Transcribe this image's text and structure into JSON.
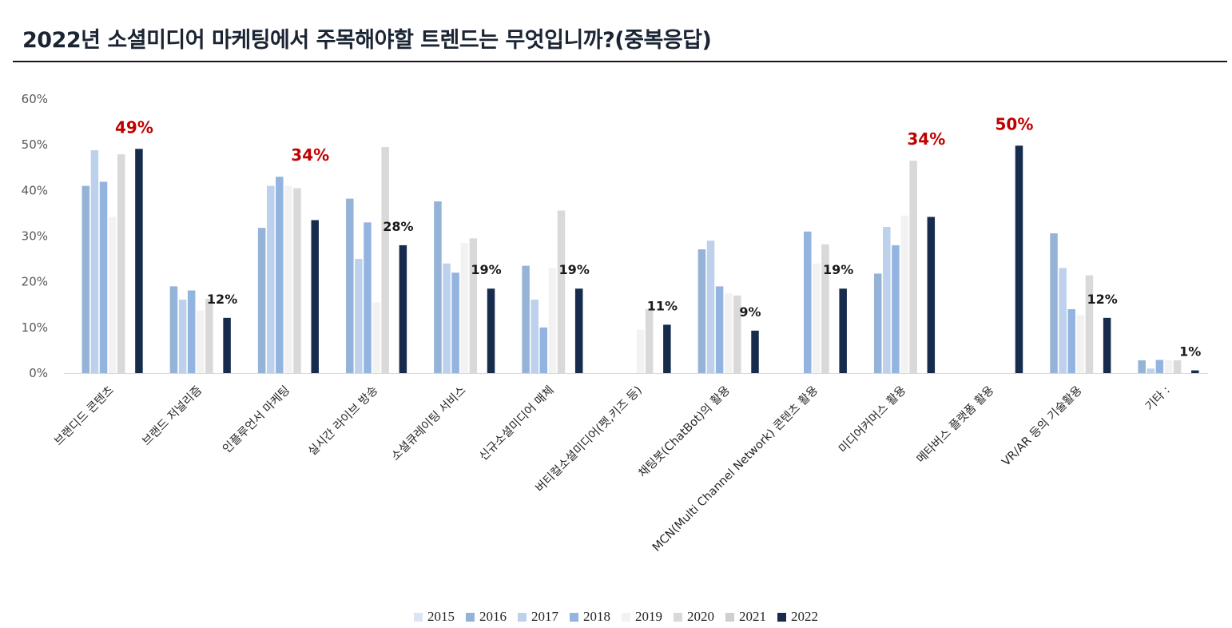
{
  "title": "2022년 소셜미디어 마케팅에서 주목해야할 트렌드는 무엇입니까?(중복응답)",
  "chart_data": {
    "type": "bar",
    "ylim": [
      0,
      60
    ],
    "yticks": [
      "0%",
      "10%",
      "20%",
      "30%",
      "40%",
      "50%",
      "60%"
    ],
    "categories": [
      "브랜디드 콘텐츠",
      "브랜드 저널리즘",
      "인플루언서 마케팅",
      "실시간 라이브 방송",
      "소셜큐레이팅 서비스",
      "신규소셜미디어 매체",
      "버티컬소셜미디어(펫,키즈 등)",
      "채팅봇(ChatBot)의 활용",
      "MCN(Multi Channel Network) 콘텐츠 활용",
      "미디어커머스 활용",
      "메타버스 플랫폼 활용",
      "VR/AR 등의 기술활용",
      "기타 :"
    ],
    "series": [
      {
        "name": "2015",
        "color": "#dce6f2",
        "values": [
          null,
          null,
          null,
          null,
          null,
          null,
          null,
          null,
          null,
          null,
          null,
          null,
          null
        ]
      },
      {
        "name": "2016",
        "color": "#95b3d7",
        "values": [
          41,
          19,
          31.8,
          38.2,
          37.6,
          23.5,
          null,
          27.1,
          null,
          21.8,
          null,
          30.6,
          2.8
        ]
      },
      {
        "name": "2017",
        "color": "#bdd1ec",
        "values": [
          48.8,
          16.1,
          41,
          25,
          24,
          16.1,
          null,
          29,
          null,
          32,
          null,
          23,
          1
        ]
      },
      {
        "name": "2018",
        "color": "#94b4e0",
        "values": [
          41.9,
          18.1,
          43,
          33,
          22,
          10,
          null,
          19,
          31,
          28,
          null,
          14,
          2.9
        ]
      },
      {
        "name": "2019",
        "color": "#f2f2f2",
        "values": [
          34.2,
          13.7,
          41,
          15.5,
          28.5,
          23,
          9.5,
          17.5,
          24,
          34.5,
          null,
          12.7,
          2.9
        ]
      },
      {
        "name": "2020",
        "color": "#d9d9d9",
        "values": [
          47.9,
          16.3,
          40.5,
          49.5,
          29.5,
          35.6,
          14,
          17,
          28.2,
          46.5,
          null,
          21.4,
          2.8
        ]
      },
      {
        "name": "2021",
        "color": "#cfcfcf",
        "values": [
          null,
          null,
          null,
          null,
          null,
          null,
          null,
          null,
          null,
          null,
          null,
          null,
          null
        ]
      },
      {
        "name": "2022",
        "color": "#172b4d",
        "values": [
          49.1,
          12.1,
          33.5,
          28,
          18.5,
          18.5,
          10.6,
          9.3,
          18.5,
          34.2,
          49.8,
          12.1,
          0.6
        ]
      }
    ],
    "data_labels": [
      {
        "category_index": 0,
        "text": "49%",
        "style": "red"
      },
      {
        "category_index": 1,
        "text": "12%",
        "style": "black"
      },
      {
        "category_index": 2,
        "text": "34%",
        "style": "red"
      },
      {
        "category_index": 3,
        "text": "28%",
        "style": "black"
      },
      {
        "category_index": 4,
        "text": "19%",
        "style": "black"
      },
      {
        "category_index": 5,
        "text": "19%",
        "style": "black"
      },
      {
        "category_index": 6,
        "text": "11%",
        "style": "black"
      },
      {
        "category_index": 7,
        "text": "9%",
        "style": "black"
      },
      {
        "category_index": 8,
        "text": "19%",
        "style": "black"
      },
      {
        "category_index": 9,
        "text": "34%",
        "style": "red"
      },
      {
        "category_index": 10,
        "text": "50%",
        "style": "red"
      },
      {
        "category_index": 11,
        "text": "12%",
        "style": "black"
      },
      {
        "category_index": 12,
        "text": "1%",
        "style": "black"
      }
    ],
    "legend_position": "bottom"
  }
}
